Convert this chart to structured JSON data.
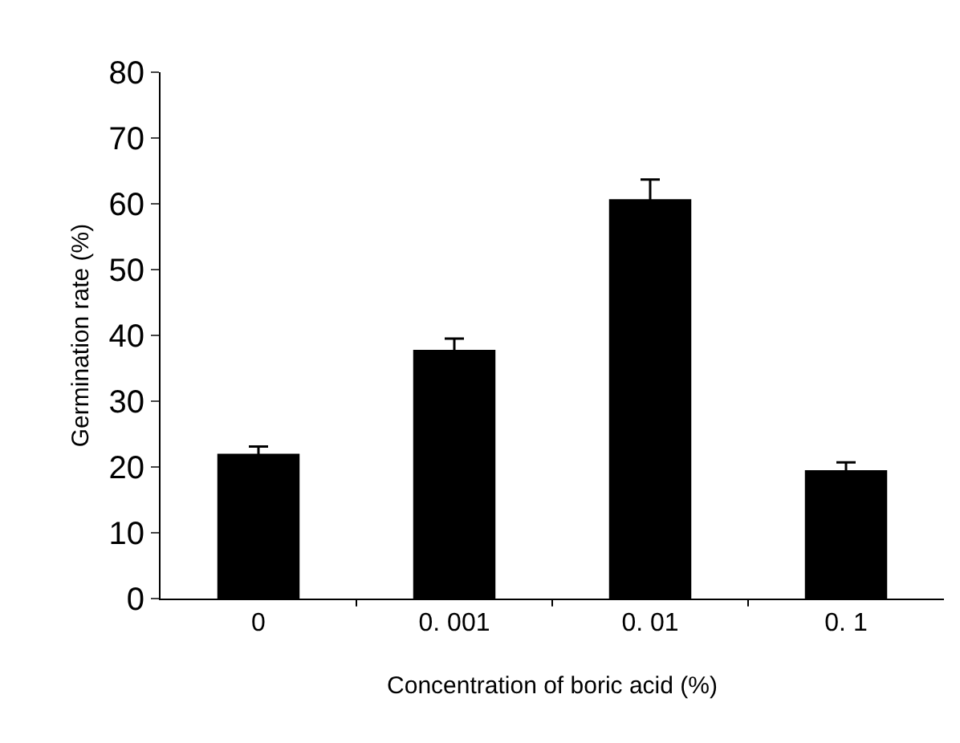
{
  "chart_data": {
    "type": "bar",
    "xlabel": "Concentration of boric acid (%)",
    "ylabel": "Germination rate (%)",
    "categories": [
      "0",
      "0. 001",
      "0. 01",
      "0. 1"
    ],
    "values": [
      22,
      37.8,
      60.7,
      19.5
    ],
    "errors": [
      1.1,
      1.7,
      3,
      1.2
    ],
    "color": "#000000",
    "ylim": [
      0,
      80
    ],
    "yticks": [
      0,
      10,
      20,
      30,
      40,
      50,
      60,
      70,
      80
    ],
    "legend": false
  }
}
